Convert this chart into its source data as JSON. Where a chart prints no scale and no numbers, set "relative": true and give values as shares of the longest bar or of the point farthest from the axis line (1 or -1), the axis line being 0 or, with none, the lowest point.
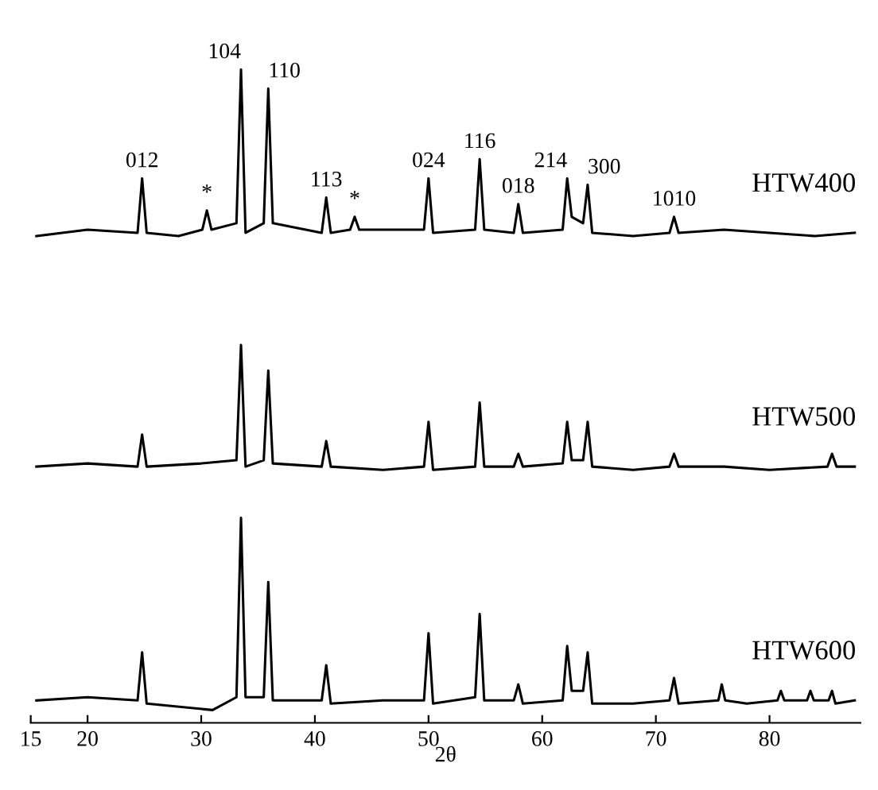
{
  "chart_data": {
    "type": "line",
    "relative": true,
    "xlabel": "2θ",
    "xlim": [
      15,
      88
    ],
    "xticks": [
      15,
      20,
      30,
      40,
      50,
      60,
      70,
      80
    ],
    "tick_labels": "x",
    "grid": false,
    "legend": false,
    "marker": "none",
    "line_style": "solid",
    "series": [
      {
        "name": "HTW400",
        "color": "#000000",
        "x": [
          15.5,
          20,
          24.4,
          24.8,
          25.2,
          28,
          30.1,
          30.5,
          30.9,
          33.1,
          33.5,
          33.9,
          35.5,
          35.9,
          36.3,
          40.6,
          41.0,
          41.4,
          43.1,
          43.5,
          43.9,
          49.6,
          50.0,
          50.4,
          54.1,
          54.5,
          54.9,
          57.5,
          57.9,
          58.3,
          61.8,
          62.2,
          62.6,
          63.6,
          64.0,
          64.4,
          68,
          71.2,
          71.6,
          72.0,
          76,
          80,
          84,
          87.5
        ],
        "values": [
          0.74,
          0.75,
          0.745,
          0.83,
          0.745,
          0.74,
          0.75,
          0.78,
          0.75,
          0.76,
          1.0,
          0.745,
          0.76,
          0.97,
          0.76,
          0.745,
          0.8,
          0.745,
          0.75,
          0.77,
          0.75,
          0.75,
          0.83,
          0.745,
          0.75,
          0.86,
          0.75,
          0.745,
          0.79,
          0.745,
          0.75,
          0.83,
          0.77,
          0.76,
          0.82,
          0.745,
          0.74,
          0.745,
          0.77,
          0.745,
          0.75,
          0.745,
          0.74,
          0.745
        ]
      },
      {
        "name": "HTW500",
        "color": "#000000",
        "x": [
          15.5,
          20,
          24.4,
          24.8,
          25.2,
          30,
          33.1,
          33.5,
          33.9,
          35.5,
          35.9,
          36.3,
          40.6,
          41.0,
          41.4,
          46,
          49.6,
          50.0,
          50.4,
          54.1,
          54.5,
          54.9,
          57.5,
          57.9,
          58.3,
          61.8,
          62.2,
          62.6,
          63.6,
          64.0,
          64.4,
          68,
          71.2,
          71.6,
          72.0,
          76,
          80,
          85.1,
          85.5,
          85.9,
          87.5
        ],
        "values": [
          0.38,
          0.385,
          0.38,
          0.43,
          0.38,
          0.385,
          0.39,
          0.57,
          0.38,
          0.39,
          0.53,
          0.385,
          0.38,
          0.42,
          0.38,
          0.375,
          0.38,
          0.45,
          0.375,
          0.38,
          0.48,
          0.38,
          0.38,
          0.4,
          0.38,
          0.385,
          0.45,
          0.39,
          0.39,
          0.45,
          0.38,
          0.375,
          0.38,
          0.4,
          0.38,
          0.38,
          0.375,
          0.38,
          0.4,
          0.38,
          0.38
        ]
      },
      {
        "name": "HTW600",
        "color": "#000000",
        "x": [
          15.5,
          20,
          24.4,
          24.8,
          25.2,
          31,
          33.1,
          33.5,
          33.9,
          35.5,
          35.9,
          36.3,
          40.6,
          41.0,
          41.4,
          46,
          49.6,
          50.0,
          50.4,
          54.1,
          54.5,
          54.9,
          57.5,
          57.9,
          58.3,
          61.8,
          62.2,
          62.6,
          63.6,
          64.0,
          64.4,
          68,
          71.2,
          71.6,
          72.0,
          75.5,
          75.8,
          76.1,
          78,
          80.7,
          81.0,
          81.3,
          83.3,
          83.6,
          83.9,
          85.2,
          85.5,
          85.8,
          87.5
        ],
        "values": [
          0.015,
          0.02,
          0.015,
          0.09,
          0.01,
          0.0,
          0.02,
          0.3,
          0.02,
          0.02,
          0.2,
          0.015,
          0.015,
          0.07,
          0.01,
          0.015,
          0.015,
          0.12,
          0.01,
          0.02,
          0.15,
          0.015,
          0.015,
          0.04,
          0.01,
          0.015,
          0.1,
          0.03,
          0.03,
          0.09,
          0.01,
          0.01,
          0.015,
          0.05,
          0.01,
          0.015,
          0.04,
          0.015,
          0.01,
          0.015,
          0.03,
          0.015,
          0.015,
          0.03,
          0.015,
          0.015,
          0.03,
          0.01,
          0.015
        ]
      }
    ],
    "annotations": [
      {
        "text": "012",
        "x": 24.8,
        "y": 0.83
      },
      {
        "text": "*",
        "x": 30.5,
        "y": 0.78
      },
      {
        "text": "104",
        "x": 33.5,
        "y": 1.0
      },
      {
        "text": "110",
        "x": 35.9,
        "y": 0.97
      },
      {
        "text": "113",
        "x": 41.0,
        "y": 0.8
      },
      {
        "text": "*",
        "x": 43.5,
        "y": 0.77
      },
      {
        "text": "024",
        "x": 50.0,
        "y": 0.83
      },
      {
        "text": "116",
        "x": 54.5,
        "y": 0.86
      },
      {
        "text": "018",
        "x": 57.9,
        "y": 0.79
      },
      {
        "text": "214",
        "x": 62.2,
        "y": 0.83
      },
      {
        "text": "300",
        "x": 64.0,
        "y": 0.82
      },
      {
        "text": "1010",
        "x": 71.6,
        "y": 0.77
      }
    ]
  }
}
